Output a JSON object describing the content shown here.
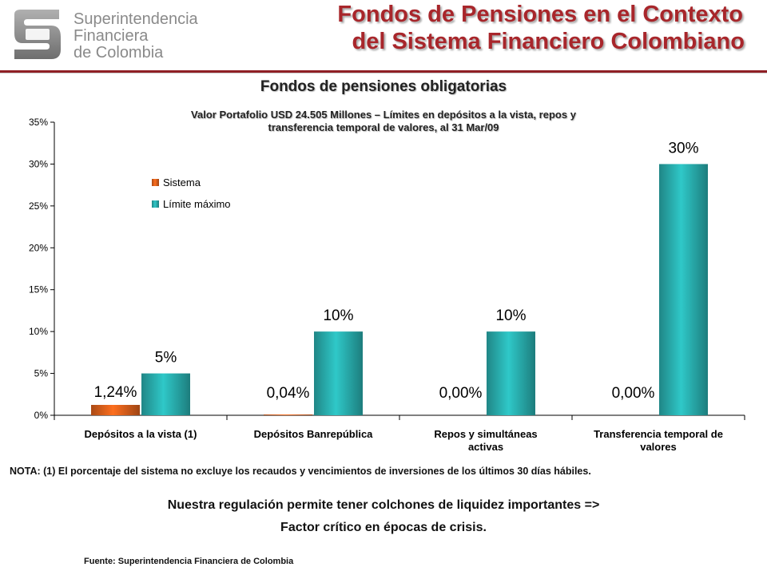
{
  "header": {
    "logo_lines": [
      "Superintendencia",
      "Financiera",
      "de Colombia"
    ],
    "title_lines": [
      "Fondos de Pensiones en el Contexto",
      "del Sistema Financiero Colombiano"
    ],
    "title_color": "#a8262b",
    "rule_color": "#8f1f25"
  },
  "chart_data": {
    "type": "bar",
    "title": "Fondos de pensiones obligatorias",
    "subtitle_lines": [
      "Valor Portafolio USD 24.505 Millones – Límites en depósitos a la vista, repos y",
      "transferencia temporal  de valores, al 31 Mar/09"
    ],
    "categories": [
      [
        "Depósitos a la vista (1)"
      ],
      [
        "Depósitos Banrepública"
      ],
      [
        "Repos y simultáneas",
        "activas"
      ],
      [
        "Transferencia temporal de",
        "valores"
      ]
    ],
    "series": [
      {
        "name": "Sistema",
        "values": [
          1.24,
          0.04,
          0.0,
          0.0
        ],
        "labels": [
          "1,24%",
          "0,04%",
          "0,00%",
          "0,00%"
        ],
        "color": "#e2631c"
      },
      {
        "name": "Límite máximo",
        "values": [
          5,
          10,
          10,
          30
        ],
        "labels": [
          "5%",
          "10%",
          "10%",
          "30%"
        ],
        "color": "#2ab3b3"
      }
    ],
    "ylim": [
      0,
      35
    ],
    "yticks": [
      "0%",
      "5%",
      "10%",
      "15%",
      "20%",
      "25%",
      "30%",
      "35%"
    ],
    "ytick_values": [
      0,
      5,
      10,
      15,
      20,
      25,
      30,
      35
    ],
    "legend_position": "top-left",
    "grid": false
  },
  "footer": {
    "nota": "NOTA: (1) El porcentaje del sistema no excluye los recaudos y vencimientos de inversiones de los últimos 30 días hábiles.",
    "message_lines": [
      "Nuestra regulación permite tener colchones de liquidez importantes =>",
      "Factor crítico en épocas de crisis."
    ],
    "fuente": "Fuente:  Superintendencia Financiera de Colombia"
  }
}
